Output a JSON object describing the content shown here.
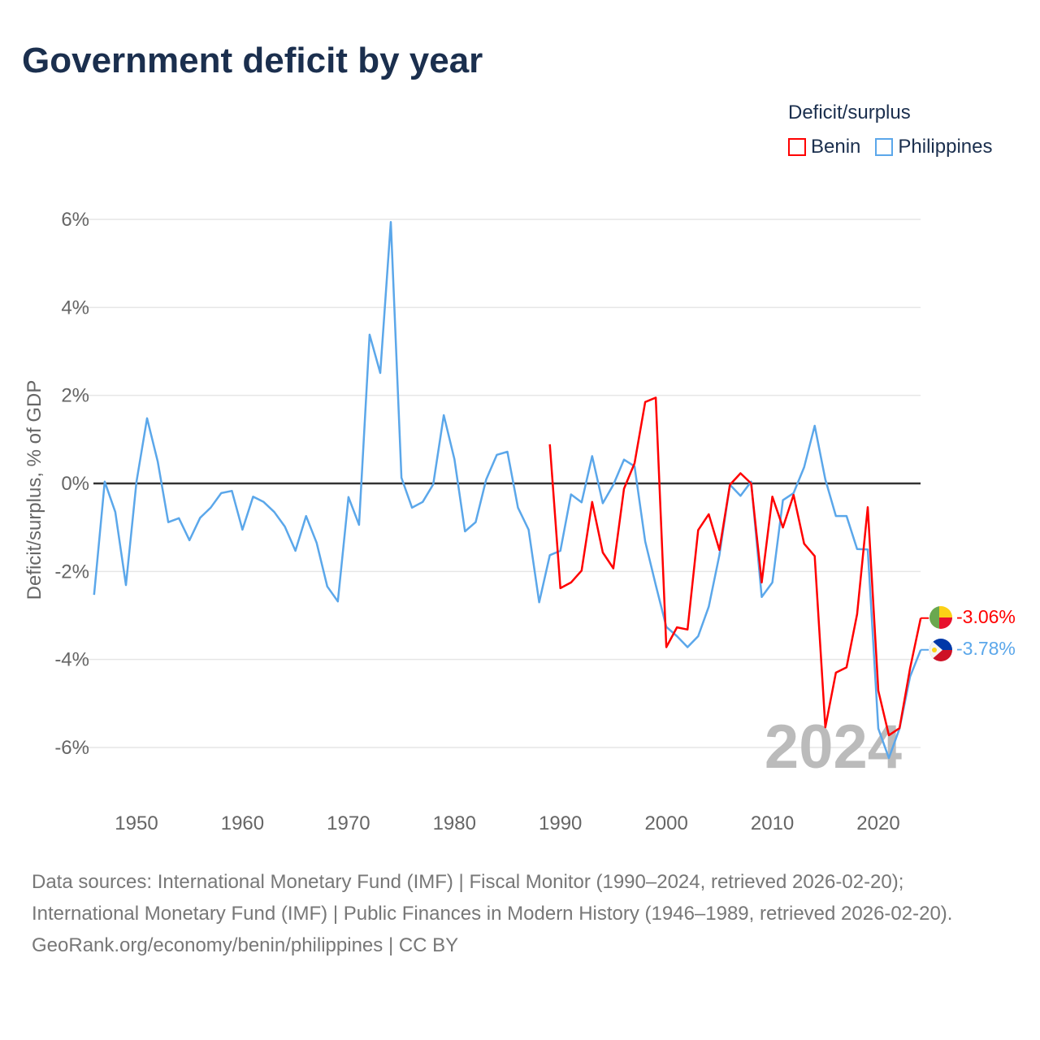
{
  "title": "Government deficit by year",
  "legend": {
    "title": "Deficit/surplus",
    "items": [
      {
        "label": "Benin",
        "color": "#ff0000"
      },
      {
        "label": "Philippines",
        "color": "#5ba7ea"
      }
    ]
  },
  "year_watermark": "2024",
  "end_labels": {
    "benin": "-3.06%",
    "philippines": "-3.78%"
  },
  "sources": {
    "line1": "Data sources: International Monetary Fund (IMF) | Fiscal Monitor (1990–2024, retrieved 2026-02-20); International Monetary Fund (IMF) | Public Finances in Modern History (1946–1989, retrieved 2026-02-20).",
    "line2": "GeoRank.org/economy/benin/philippines | CC BY"
  },
  "chart_data": {
    "type": "line",
    "title": "Government deficit by year",
    "xlabel": "",
    "ylabel": "Deficit/surplus, % of GDP",
    "xlim": [
      1946,
      2024
    ],
    "ylim": [
      -7,
      6.5
    ],
    "xticks": [
      1950,
      1960,
      1970,
      1980,
      1990,
      2000,
      2010,
      2020
    ],
    "yticks": [
      -6,
      -4,
      -2,
      0,
      2,
      4,
      6
    ],
    "ytick_labels": [
      "-6%",
      "-4%",
      "-2%",
      "0%",
      "2%",
      "4%",
      "6%"
    ],
    "grid": true,
    "legend_position": "top-right",
    "series": [
      {
        "name": "Benin",
        "color": "#ff0000",
        "x_start": 1989,
        "values": [
          0.89,
          -2.38,
          -2.25,
          -1.98,
          -0.42,
          -1.57,
          -1.93,
          -0.12,
          0.46,
          1.85,
          1.95,
          -3.72,
          -3.27,
          -3.32,
          -1.06,
          -0.7,
          -1.51,
          -0.03,
          0.23,
          0.0,
          -2.25,
          -0.3,
          -1.0,
          -0.26,
          -1.37,
          -1.65,
          -5.54,
          -4.3,
          -4.18,
          -2.97,
          -0.54,
          -4.71,
          -5.72,
          -5.56,
          -4.2,
          -3.06
        ]
      },
      {
        "name": "Philippines",
        "color": "#5ba7ea",
        "x_start": 1946,
        "values": [
          -2.53,
          0.04,
          -0.65,
          -2.31,
          0.04,
          1.48,
          0.5,
          -0.88,
          -0.79,
          -1.29,
          -0.78,
          -0.55,
          -0.22,
          -0.17,
          -1.05,
          -0.3,
          -0.42,
          -0.65,
          -0.98,
          -1.53,
          -0.74,
          -1.35,
          -2.34,
          -2.68,
          -0.31,
          -0.94,
          3.38,
          2.51,
          5.94,
          0.13,
          -0.55,
          -0.42,
          -0.02,
          1.55,
          0.55,
          -1.09,
          -0.88,
          0.09,
          0.65,
          0.72,
          -0.55,
          -1.05,
          -2.7,
          -1.63,
          -1.53,
          -0.25,
          -0.43,
          0.62,
          -0.45,
          -0.03,
          0.54,
          0.39,
          -1.32,
          -2.31,
          -3.26,
          -3.47,
          -3.72,
          -3.47,
          -2.8,
          -1.63,
          -0.03,
          -0.28,
          0.04,
          -2.58,
          -2.25,
          -0.38,
          -0.22,
          0.37,
          1.31,
          0.09,
          -0.74,
          -0.74,
          -1.49,
          -1.5,
          -5.57,
          -6.24,
          -5.57,
          -4.39,
          -3.78
        ]
      }
    ]
  }
}
